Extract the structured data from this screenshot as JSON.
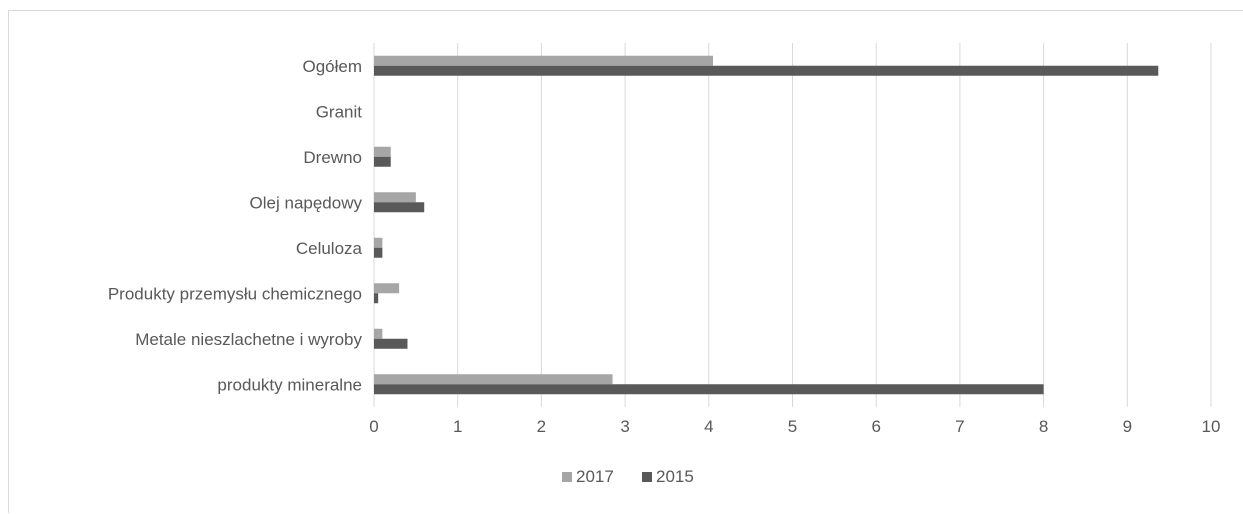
{
  "chart_data": {
    "type": "bar",
    "orientation": "horizontal",
    "categories": [
      "Ogółem",
      "Granit",
      "Drewno",
      "Olej napędowy",
      "Celuloza",
      "Produkty przemysłu chemicznego",
      "Metale nieszlachetne i wyroby",
      "produkty mineralne"
    ],
    "series": [
      {
        "name": "2017",
        "color": "#a6a6a6",
        "values": [
          4.05,
          0.0,
          0.2,
          0.5,
          0.1,
          0.3,
          0.1,
          2.85
        ]
      },
      {
        "name": "2015",
        "color": "#595959",
        "values": [
          9.37,
          0.0,
          0.2,
          0.6,
          0.1,
          0.05,
          0.4,
          8.0
        ]
      }
    ],
    "xlim": [
      0,
      10
    ],
    "xticks": [
      "0",
      "1",
      "2",
      "3",
      "4",
      "5",
      "6",
      "7",
      "8",
      "9",
      "10"
    ],
    "grid": "vertical",
    "legend": "bottom",
    "title": "",
    "xlabel": "",
    "ylabel": ""
  }
}
